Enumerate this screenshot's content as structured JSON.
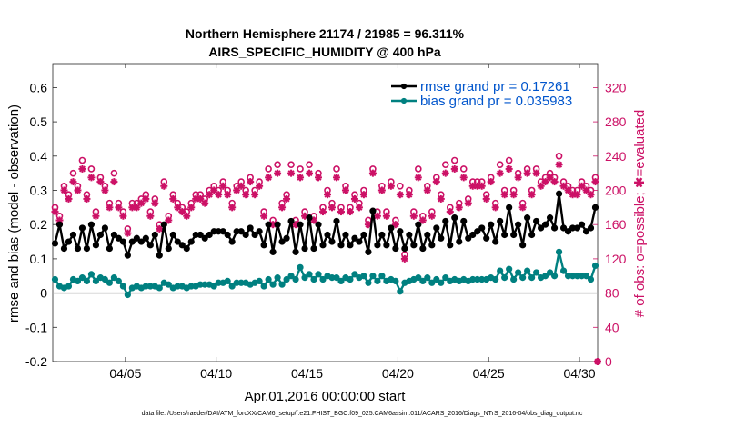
{
  "chart_data": {
    "type": "line",
    "title_line1": "Northern Hemisphere 21174 / 21985 = 96.311%",
    "title_line2": "AIRS_SPECIFIC_HUMIDITY @ 400 hPa",
    "xlabel": "Apr.01,2016 00:00:00 start",
    "ylabel_left": "rmse and bias (model - observation)",
    "ylabel_right": "# of obs: o=possible; ✱=evaluated",
    "x_ticks": [
      "04/05",
      "04/10",
      "04/15",
      "04/20",
      "04/25",
      "04/30"
    ],
    "x_tick_days": [
      5,
      10,
      15,
      20,
      25,
      30
    ],
    "xlim": [
      1.0,
      31.0
    ],
    "y_left_ticks": [
      "-0.2",
      "-0.1",
      "0",
      "0.1",
      "0.2",
      "0.3",
      "0.4",
      "0.5",
      "0.6"
    ],
    "y_left_values": [
      -0.2,
      -0.1,
      0,
      0.1,
      0.2,
      0.3,
      0.4,
      0.5,
      0.6
    ],
    "ylim_left": [
      -0.2,
      0.67
    ],
    "y_right_ticks": [
      "0",
      "40",
      "80",
      "120",
      "160",
      "200",
      "240",
      "280",
      "320"
    ],
    "y_right_values": [
      0,
      40,
      80,
      120,
      160,
      200,
      240,
      280,
      320
    ],
    "ylim_right": [
      0,
      348
    ],
    "series": [
      {
        "name": "rmse grand pr = 0.17261",
        "color": "#000000",
        "axis": "left",
        "x": [
          1.125,
          1.375,
          1.625,
          1.875,
          2.125,
          2.375,
          2.625,
          2.875,
          3.125,
          3.375,
          3.625,
          3.875,
          4.125,
          4.375,
          4.625,
          4.875,
          5.125,
          5.375,
          5.625,
          5.875,
          6.125,
          6.375,
          6.625,
          6.875,
          7.125,
          7.375,
          7.625,
          7.875,
          8.125,
          8.375,
          8.625,
          8.875,
          9.125,
          9.375,
          9.625,
          9.875,
          10.125,
          10.375,
          10.625,
          10.875,
          11.125,
          11.375,
          11.625,
          11.875,
          12.125,
          12.375,
          12.625,
          12.875,
          13.125,
          13.375,
          13.625,
          13.875,
          14.125,
          14.375,
          14.625,
          14.875,
          15.125,
          15.375,
          15.625,
          15.875,
          16.125,
          16.375,
          16.625,
          16.875,
          17.125,
          17.375,
          17.625,
          17.875,
          18.125,
          18.375,
          18.625,
          18.875,
          19.125,
          19.375,
          19.625,
          19.875,
          20.125,
          20.375,
          20.625,
          20.875,
          21.125,
          21.375,
          21.625,
          21.875,
          22.125,
          22.375,
          22.625,
          22.875,
          23.125,
          23.375,
          23.625,
          23.875,
          24.125,
          24.375,
          24.625,
          24.875,
          25.125,
          25.375,
          25.625,
          25.875,
          26.125,
          26.375,
          26.625,
          26.875,
          27.125,
          27.375,
          27.625,
          27.875,
          28.125,
          28.375,
          28.625,
          28.875,
          29.125,
          29.375,
          29.625,
          29.875,
          30.125,
          30.375,
          30.625,
          30.875
        ],
        "values": [
          0.145,
          0.2,
          0.13,
          0.15,
          0.17,
          0.13,
          0.19,
          0.13,
          0.2,
          0.14,
          0.17,
          0.19,
          0.13,
          0.17,
          0.16,
          0.15,
          0.11,
          0.15,
          0.16,
          0.15,
          0.16,
          0.14,
          0.17,
          0.11,
          0.2,
          0.13,
          0.17,
          0.15,
          0.14,
          0.13,
          0.15,
          0.17,
          0.17,
          0.16,
          0.17,
          0.18,
          0.18,
          0.18,
          0.17,
          0.15,
          0.18,
          0.18,
          0.17,
          0.19,
          0.17,
          0.18,
          0.14,
          0.2,
          0.12,
          0.2,
          0.15,
          0.16,
          0.21,
          0.12,
          0.2,
          0.13,
          0.22,
          0.13,
          0.2,
          0.14,
          0.17,
          0.15,
          0.21,
          0.14,
          0.17,
          0.14,
          0.16,
          0.15,
          0.17,
          0.12,
          0.24,
          0.14,
          0.17,
          0.14,
          0.19,
          0.13,
          0.18,
          0.13,
          0.17,
          0.14,
          0.2,
          0.13,
          0.17,
          0.14,
          0.19,
          0.16,
          0.21,
          0.14,
          0.22,
          0.15,
          0.21,
          0.16,
          0.17,
          0.18,
          0.19,
          0.16,
          0.2,
          0.15,
          0.21,
          0.17,
          0.25,
          0.17,
          0.2,
          0.14,
          0.22,
          0.17,
          0.21,
          0.19,
          0.2,
          0.22,
          0.19,
          0.29,
          0.19,
          0.18,
          0.19,
          0.19,
          0.2,
          0.18,
          0.19,
          0.25
        ]
      },
      {
        "name": "bias grand pr = 0.035983",
        "color": "#008080",
        "axis": "left",
        "x": [
          1.125,
          1.375,
          1.625,
          1.875,
          2.125,
          2.375,
          2.625,
          2.875,
          3.125,
          3.375,
          3.625,
          3.875,
          4.125,
          4.375,
          4.625,
          4.875,
          5.125,
          5.375,
          5.625,
          5.875,
          6.125,
          6.375,
          6.625,
          6.875,
          7.125,
          7.375,
          7.625,
          7.875,
          8.125,
          8.375,
          8.625,
          8.875,
          9.125,
          9.375,
          9.625,
          9.875,
          10.125,
          10.375,
          10.625,
          10.875,
          11.125,
          11.375,
          11.625,
          11.875,
          12.125,
          12.375,
          12.625,
          12.875,
          13.125,
          13.375,
          13.625,
          13.875,
          14.125,
          14.375,
          14.625,
          14.875,
          15.125,
          15.375,
          15.625,
          15.875,
          16.125,
          16.375,
          16.625,
          16.875,
          17.125,
          17.375,
          17.625,
          17.875,
          18.125,
          18.375,
          18.625,
          18.875,
          19.125,
          19.375,
          19.625,
          19.875,
          20.125,
          20.375,
          20.625,
          20.875,
          21.125,
          21.375,
          21.625,
          21.875,
          22.125,
          22.375,
          22.625,
          22.875,
          23.125,
          23.375,
          23.625,
          23.875,
          24.125,
          24.375,
          24.625,
          24.875,
          25.125,
          25.375,
          25.625,
          25.875,
          26.125,
          26.375,
          26.625,
          26.875,
          27.125,
          27.375,
          27.625,
          27.875,
          28.125,
          28.375,
          28.625,
          28.875,
          29.125,
          29.375,
          29.625,
          29.875,
          30.125,
          30.375,
          30.625,
          30.875
        ],
        "values": [
          0.04,
          0.02,
          0.015,
          0.02,
          0.04,
          0.035,
          0.045,
          0.035,
          0.055,
          0.035,
          0.045,
          0.04,
          0.03,
          0.045,
          0.035,
          0.02,
          -0.005,
          0.015,
          0.02,
          0.015,
          0.02,
          0.02,
          0.02,
          0.015,
          0.03,
          0.025,
          0.015,
          0.02,
          0.02,
          0.015,
          0.02,
          0.02,
          0.025,
          0.025,
          0.025,
          0.02,
          0.03,
          0.03,
          0.035,
          0.02,
          0.03,
          0.03,
          0.03,
          0.025,
          0.03,
          0.035,
          0.02,
          0.04,
          0.025,
          0.045,
          0.025,
          0.04,
          0.05,
          0.04,
          0.075,
          0.045,
          0.055,
          0.04,
          0.055,
          0.04,
          0.05,
          0.045,
          0.045,
          0.035,
          0.045,
          0.04,
          0.055,
          0.045,
          0.05,
          0.03,
          0.05,
          0.035,
          0.05,
          0.035,
          0.04,
          0.035,
          0.005,
          0.03,
          0.035,
          0.04,
          0.045,
          0.035,
          0.045,
          0.03,
          0.04,
          0.03,
          0.045,
          0.035,
          0.04,
          0.035,
          0.04,
          0.035,
          0.04,
          0.04,
          0.04,
          0.04,
          0.045,
          0.04,
          0.065,
          0.045,
          0.07,
          0.04,
          0.06,
          0.045,
          0.065,
          0.045,
          0.06,
          0.045,
          0.05,
          0.06,
          0.05,
          0.12,
          0.065,
          0.05,
          0.05,
          0.05,
          0.05,
          0.05,
          0.04,
          0.08
        ]
      },
      {
        "name": "possible obs",
        "color": "#cc1166",
        "axis": "right",
        "marker": "o",
        "x": [
          1.125,
          1.375,
          1.625,
          1.875,
          2.125,
          2.375,
          2.625,
          2.875,
          3.125,
          3.375,
          3.625,
          3.875,
          4.125,
          4.375,
          4.625,
          4.875,
          5.125,
          5.375,
          5.625,
          5.875,
          6.125,
          6.375,
          6.625,
          6.875,
          7.125,
          7.375,
          7.625,
          7.875,
          8.125,
          8.375,
          8.625,
          8.875,
          9.125,
          9.375,
          9.625,
          9.875,
          10.125,
          10.375,
          10.625,
          10.875,
          11.125,
          11.375,
          11.625,
          11.875,
          12.125,
          12.375,
          12.625,
          12.875,
          13.125,
          13.375,
          13.625,
          13.875,
          14.125,
          14.375,
          14.625,
          14.875,
          15.125,
          15.375,
          15.625,
          15.875,
          16.125,
          16.375,
          16.625,
          16.875,
          17.125,
          17.375,
          17.625,
          17.875,
          18.125,
          18.375,
          18.625,
          18.875,
          19.125,
          19.375,
          19.625,
          19.875,
          20.125,
          20.375,
          20.625,
          20.875,
          21.125,
          21.375,
          21.625,
          21.875,
          22.125,
          22.375,
          22.625,
          22.875,
          23.125,
          23.375,
          23.625,
          23.875,
          24.125,
          24.375,
          24.625,
          24.875,
          25.125,
          25.375,
          25.625,
          25.875,
          26.125,
          26.375,
          26.625,
          26.875,
          27.125,
          27.375,
          27.625,
          27.875,
          28.125,
          28.375,
          28.625,
          28.875,
          29.125,
          29.375,
          29.625,
          29.875,
          30.125,
          30.375,
          30.625,
          30.875
        ],
        "values": [
          180,
          170,
          205,
          195,
          220,
          205,
          235,
          195,
          225,
          175,
          215,
          205,
          185,
          220,
          185,
          175,
          155,
          185,
          185,
          190,
          195,
          175,
          190,
          160,
          210,
          170,
          195,
          185,
          180,
          175,
          185,
          195,
          195,
          190,
          200,
          205,
          200,
          210,
          200,
          185,
          205,
          210,
          200,
          215,
          200,
          210,
          175,
          225,
          165,
          230,
          185,
          195,
          230,
          165,
          225,
          175,
          230,
          170,
          220,
          180,
          200,
          185,
          225,
          180,
          205,
          180,
          195,
          185,
          200,
          165,
          225,
          175,
          205,
          175,
          210,
          165,
          205,
          125,
          200,
          175,
          225,
          170,
          205,
          175,
          215,
          195,
          230,
          180,
          235,
          185,
          225,
          190,
          210,
          210,
          210,
          195,
          215,
          185,
          230,
          200,
          235,
          200,
          220,
          185,
          225,
          200,
          225,
          210,
          215,
          220,
          215,
          240,
          210,
          205,
          200,
          200,
          210,
          205,
          200,
          215
        ]
      },
      {
        "name": "evaluated obs",
        "color": "#cc1166",
        "axis": "right",
        "marker": "*",
        "x": [
          1.125,
          1.375,
          1.625,
          1.875,
          2.125,
          2.375,
          2.625,
          2.875,
          3.125,
          3.375,
          3.625,
          3.875,
          4.125,
          4.375,
          4.625,
          4.875,
          5.125,
          5.375,
          5.625,
          5.875,
          6.125,
          6.375,
          6.625,
          6.875,
          7.125,
          7.375,
          7.625,
          7.875,
          8.125,
          8.375,
          8.625,
          8.875,
          9.125,
          9.375,
          9.625,
          9.875,
          10.125,
          10.375,
          10.625,
          10.875,
          11.125,
          11.375,
          11.625,
          11.875,
          12.125,
          12.375,
          12.625,
          12.875,
          13.125,
          13.375,
          13.625,
          13.875,
          14.125,
          14.375,
          14.625,
          14.875,
          15.125,
          15.375,
          15.625,
          15.875,
          16.125,
          16.375,
          16.625,
          16.875,
          17.125,
          17.375,
          17.625,
          17.875,
          18.125,
          18.375,
          18.625,
          18.875,
          19.125,
          19.375,
          19.625,
          19.875,
          20.125,
          20.375,
          20.625,
          20.875,
          21.125,
          21.375,
          21.625,
          21.875,
          22.125,
          22.375,
          22.625,
          22.875,
          23.125,
          23.375,
          23.625,
          23.875,
          24.125,
          24.375,
          24.625,
          24.875,
          25.125,
          25.375,
          25.625,
          25.875,
          26.125,
          26.375,
          26.625,
          26.875,
          27.125,
          27.375,
          27.625,
          27.875,
          28.125,
          28.375,
          28.625,
          28.875,
          29.125,
          29.375,
          29.625,
          29.875,
          30.125,
          30.375,
          30.625,
          30.875
        ],
        "values": [
          175,
          165,
          200,
          190,
          210,
          200,
          225,
          190,
          215,
          170,
          210,
          200,
          180,
          210,
          180,
          170,
          150,
          180,
          180,
          185,
          190,
          170,
          185,
          155,
          205,
          165,
          190,
          180,
          175,
          170,
          180,
          190,
          190,
          185,
          195,
          200,
          195,
          205,
          195,
          180,
          200,
          205,
          195,
          210,
          195,
          205,
          170,
          215,
          160,
          220,
          180,
          190,
          220,
          160,
          215,
          170,
          220,
          165,
          215,
          175,
          195,
          180,
          215,
          175,
          200,
          175,
          190,
          180,
          195,
          160,
          220,
          170,
          200,
          170,
          205,
          160,
          195,
          120,
          195,
          170,
          215,
          165,
          200,
          170,
          210,
          190,
          220,
          175,
          225,
          180,
          215,
          185,
          205,
          205,
          205,
          190,
          210,
          180,
          220,
          195,
          225,
          195,
          215,
          180,
          220,
          195,
          220,
          205,
          210,
          215,
          210,
          230,
          205,
          200,
          195,
          195,
          205,
          200,
          195,
          210
        ]
      }
    ]
  },
  "footer": "data file: /Users/raeder/DAI/ATM_forcXX/CAM6_setup/f.e21.FHIST_BGC.f09_025.CAM6assim.011/ACARS_2016/Diags_NTrS_2016-04/obs_diag_output.nc",
  "colors": {
    "rmse": "#000000",
    "bias": "#008080",
    "obs": "#cc1166",
    "legend_text": "#0055cc"
  }
}
